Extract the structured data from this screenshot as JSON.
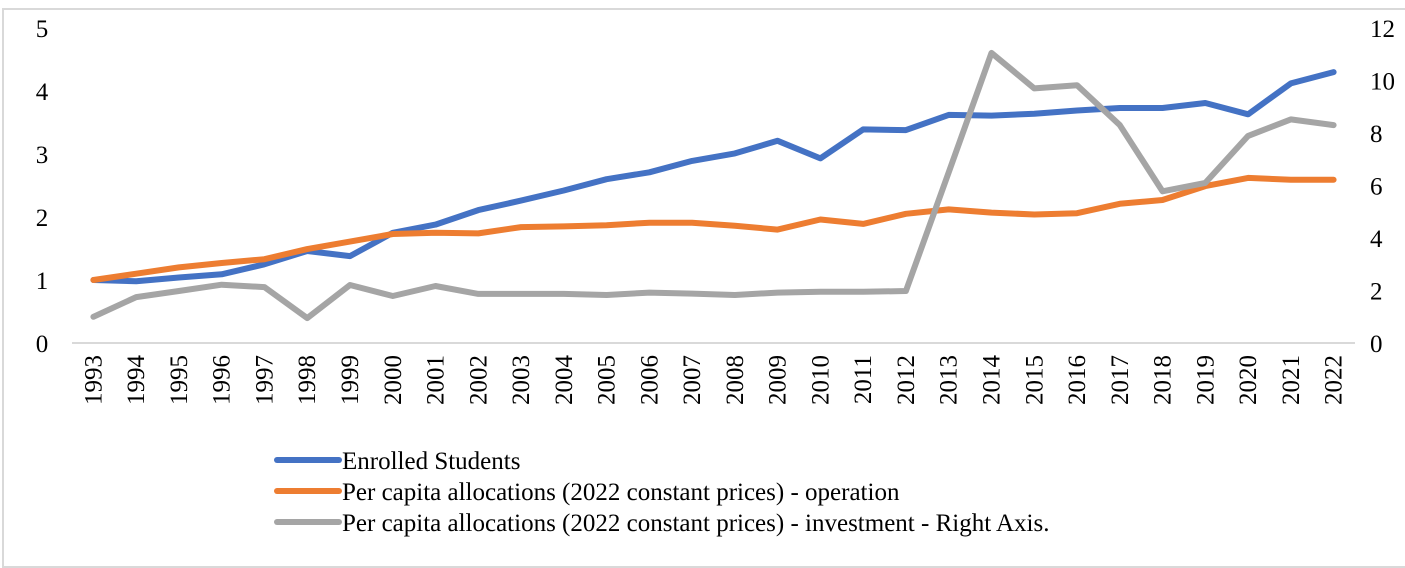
{
  "chart_data": {
    "type": "line",
    "title": "",
    "xlabel": "",
    "ylabel": "",
    "y2label": "",
    "grid": false,
    "legend_position": "bottom",
    "ylim": [
      0,
      5
    ],
    "y_ticks": [
      "0",
      "1",
      "2",
      "3",
      "4",
      "5"
    ],
    "y2lim": [
      0,
      12
    ],
    "y2_ticks": [
      "0",
      "2",
      "4",
      "6",
      "8",
      "10",
      "12"
    ],
    "categories": [
      "1993",
      "1994",
      "1995",
      "1996",
      "1997",
      "1998",
      "1999",
      "2000",
      "2001",
      "2002",
      "2003",
      "2004",
      "2005",
      "2006",
      "2007",
      "2008",
      "2009",
      "2010",
      "2011",
      "2012",
      "2013",
      "2014",
      "2015",
      "2016",
      "2017",
      "2018",
      "2019",
      "2020",
      "2021",
      "2022"
    ],
    "series": [
      {
        "name": "Enrolled Students",
        "axis": "left",
        "color": "#4472c4",
        "values": [
          1.0,
          0.98,
          1.04,
          1.09,
          1.25,
          1.46,
          1.38,
          1.75,
          1.88,
          2.11,
          2.26,
          2.42,
          2.6,
          2.71,
          2.89,
          3.01,
          3.21,
          2.93,
          3.39,
          3.38,
          3.62,
          3.61,
          3.64,
          3.69,
          3.73,
          3.73,
          3.81,
          3.63,
          4.12,
          4.3
        ]
      },
      {
        "name": "Per capita allocations (2022 constant prices) - operation",
        "axis": "left",
        "color": "#ed7d31",
        "values": [
          1.0,
          1.1,
          1.2,
          1.27,
          1.33,
          1.49,
          1.61,
          1.73,
          1.75,
          1.74,
          1.84,
          1.85,
          1.87,
          1.91,
          1.91,
          1.86,
          1.8,
          1.96,
          1.89,
          2.05,
          2.12,
          2.07,
          2.04,
          2.06,
          2.21,
          2.27,
          2.49,
          2.62,
          2.59,
          2.59
        ]
      },
      {
        "name": "Per capita allocations (2022 constant prices) - investment - Right Axis.",
        "axis": "right",
        "color": "#a5a5a5",
        "values": [
          1.0,
          1.75,
          1.98,
          2.22,
          2.13,
          0.95,
          2.21,
          1.79,
          2.17,
          1.87,
          1.87,
          1.87,
          1.83,
          1.92,
          1.88,
          1.83,
          1.92,
          1.95,
          1.95,
          1.98,
          6.5,
          11.05,
          9.7,
          9.82,
          8.3,
          5.78,
          6.1,
          7.89,
          8.52,
          8.3
        ]
      }
    ]
  }
}
